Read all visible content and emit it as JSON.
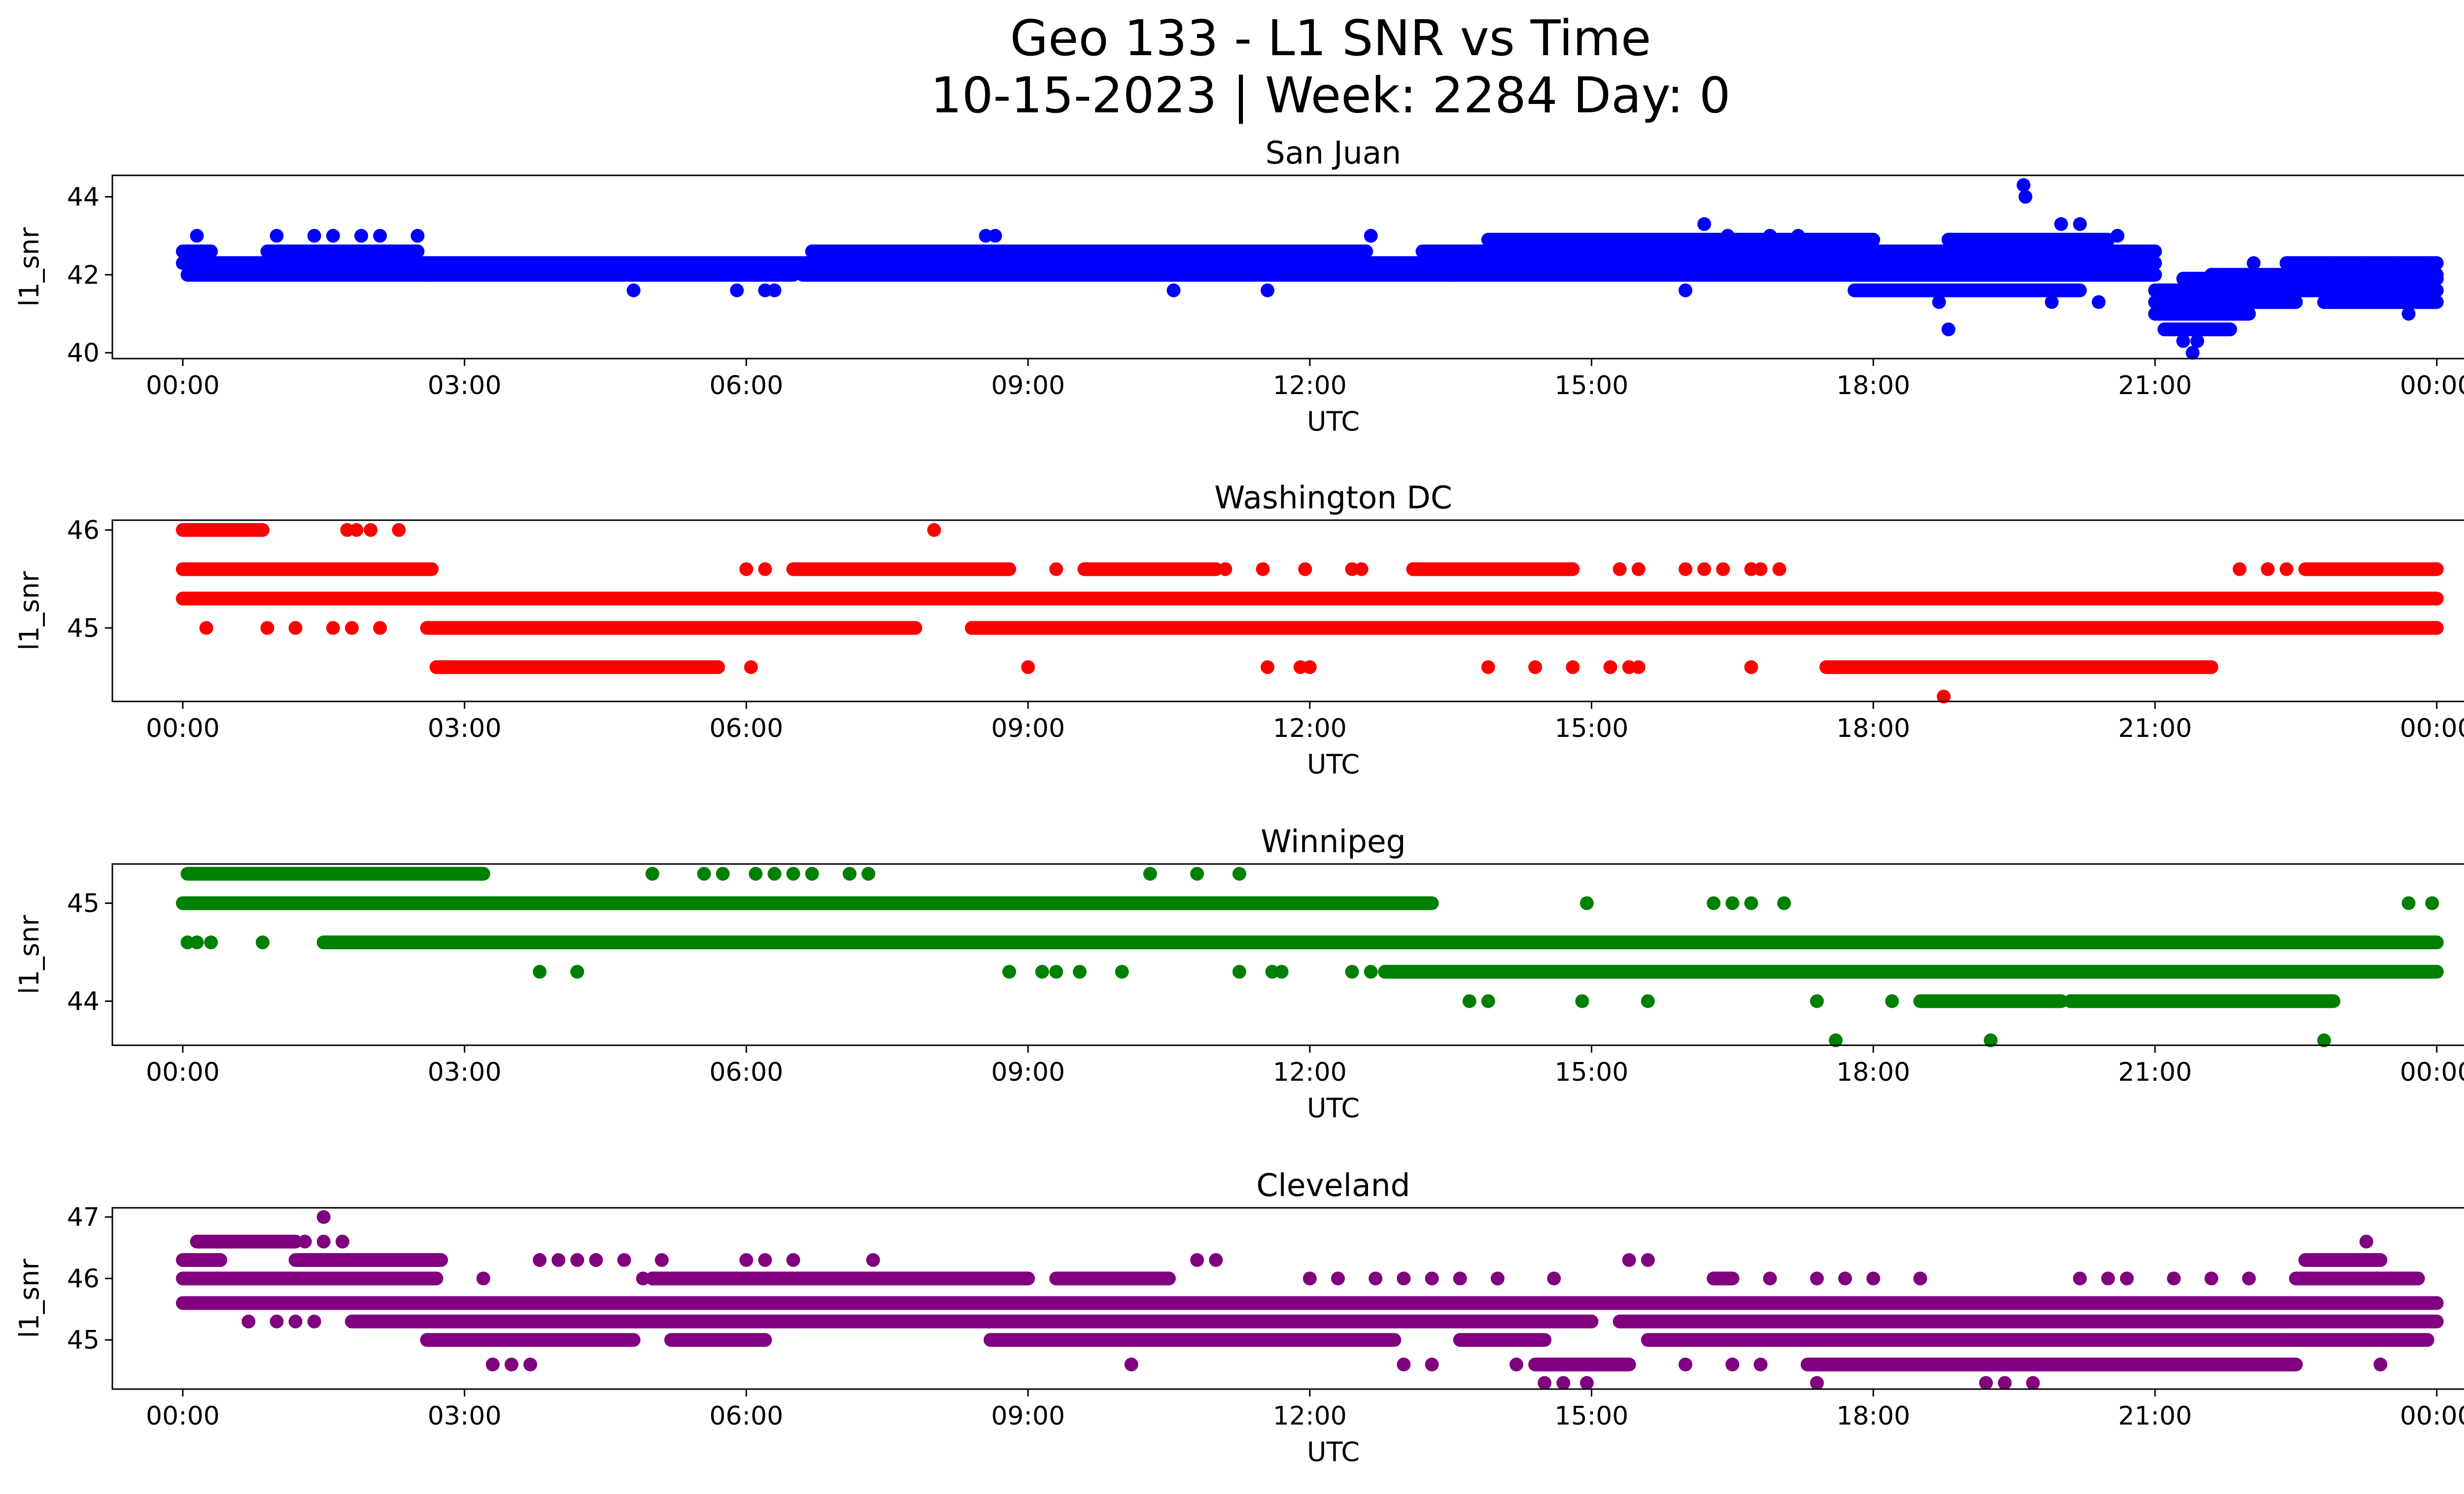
{
  "figure": {
    "title_line1": "Geo 133 - L1 SNR vs Time",
    "title_line2": "10-15-2023 | Week: 2284 Day: 0"
  },
  "chart_data": [
    {
      "type": "scatter",
      "title": "San Juan",
      "xlabel": "UTC",
      "ylabel": "l1_snr",
      "color": "#0000ff",
      "xlim_hours": [
        -0.75,
        25.25
      ],
      "ylim": [
        39.85,
        44.55
      ],
      "xticks": [
        "00:00",
        "03:00",
        "06:00",
        "09:00",
        "12:00",
        "15:00",
        "18:00",
        "21:00",
        "00:00"
      ],
      "yticks": [
        40,
        42,
        44
      ],
      "bands": [
        {
          "y": 42.6,
          "x": [
            [
              0,
              0.3
            ],
            [
              0.9,
              2.5
            ],
            [
              6.7,
              12.6
            ],
            [
              13.2,
              21
            ]
          ]
        },
        {
          "y": 42.3,
          "x": [
            [
              0,
              6.7
            ],
            [
              6.7,
              21
            ],
            [
              22.4,
              24
            ]
          ]
        },
        {
          "y": 42.0,
          "x": [
            [
              0.05,
              2.6
            ],
            [
              2.6,
              6.5
            ],
            [
              6.6,
              13.5
            ],
            [
              13.5,
              21
            ],
            [
              21.6,
              24
            ]
          ]
        },
        {
          "y": 41.9,
          "x": [
            [
              21.3,
              24
            ]
          ]
        },
        {
          "y": 41.6,
          "x": [
            [
              17.8,
              20.2
            ],
            [
              21,
              24
            ]
          ]
        },
        {
          "y": 41.3,
          "x": [
            [
              21,
              22.5
            ],
            [
              22.8,
              24
            ]
          ]
        },
        {
          "y": 41.0,
          "x": [
            [
              21,
              22
            ]
          ]
        },
        {
          "y": 40.6,
          "x": [
            [
              21.1,
              21.8
            ]
          ]
        },
        {
          "y": 42.9,
          "x": [
            [
              13.9,
              18.0
            ],
            [
              18.8,
              20.5
            ]
          ]
        }
      ],
      "points": [
        [
          0.15,
          43.0
        ],
        [
          1.0,
          43.0
        ],
        [
          1.4,
          43.0
        ],
        [
          1.6,
          43.0
        ],
        [
          1.9,
          43.0
        ],
        [
          2.1,
          43.0
        ],
        [
          2.5,
          43.0
        ],
        [
          4.8,
          41.6
        ],
        [
          5.9,
          41.6
        ],
        [
          6.2,
          41.6
        ],
        [
          6.3,
          41.6
        ],
        [
          8.55,
          43.0
        ],
        [
          8.65,
          43.0
        ],
        [
          10.55,
          41.6
        ],
        [
          11.55,
          41.6
        ],
        [
          12.65,
          43.0
        ],
        [
          16.2,
          43.3
        ],
        [
          16.45,
          43.0
        ],
        [
          16.0,
          41.6
        ],
        [
          16.9,
          43.0
        ],
        [
          17.2,
          43.0
        ],
        [
          18.7,
          41.3
        ],
        [
          18.8,
          40.6
        ],
        [
          19.6,
          44.3
        ],
        [
          19.62,
          44.0
        ],
        [
          20.0,
          43.3
        ],
        [
          20.2,
          43.3
        ],
        [
          19.9,
          41.3
        ],
        [
          20.4,
          41.3
        ],
        [
          20.6,
          43.0
        ],
        [
          21.4,
          40.0
        ],
        [
          21.75,
          42.0
        ],
        [
          22.05,
          42.3
        ],
        [
          22.4,
          42.3
        ],
        [
          22.9,
          42.3
        ],
        [
          23.2,
          42.3
        ],
        [
          23.6,
          42.3
        ],
        [
          23.7,
          41.0
        ],
        [
          23.9,
          42.3
        ],
        [
          21.3,
          40.3
        ],
        [
          21.45,
          40.3
        ]
      ]
    },
    {
      "type": "scatter",
      "title": "Washington DC",
      "xlabel": "UTC",
      "ylabel": "l1_snr",
      "color": "#ff0000",
      "xlim_hours": [
        -0.75,
        25.25
      ],
      "ylim": [
        44.25,
        46.1
      ],
      "xticks": [
        "00:00",
        "03:00",
        "06:00",
        "09:00",
        "12:00",
        "15:00",
        "18:00",
        "21:00",
        "00:00"
      ],
      "yticks": [
        45,
        46
      ],
      "bands": [
        {
          "y": 46.0,
          "x": [
            [
              0,
              0.85
            ]
          ]
        },
        {
          "y": 45.6,
          "x": [
            [
              0,
              2.65
            ],
            [
              6.5,
              8.8
            ],
            [
              9.6,
              11.0
            ],
            [
              13.1,
              14.8
            ],
            [
              22.6,
              24
            ]
          ]
        },
        {
          "y": 45.3,
          "x": [
            [
              0,
              24
            ]
          ]
        },
        {
          "y": 45.0,
          "x": [
            [
              2.6,
              7.8
            ],
            [
              8.4,
              15.8
            ],
            [
              15.8,
              24
            ]
          ]
        },
        {
          "y": 44.6,
          "x": [
            [
              2.7,
              5.7
            ],
            [
              17.5,
              21.6
            ]
          ]
        }
      ],
      "points": [
        [
          0.25,
          45.0
        ],
        [
          0.9,
          45.0
        ],
        [
          1.2,
          45.0
        ],
        [
          1.6,
          45.0
        ],
        [
          1.8,
          45.0
        ],
        [
          2.1,
          45.0
        ],
        [
          1.75,
          46.0
        ],
        [
          1.85,
          46.0
        ],
        [
          2.0,
          46.0
        ],
        [
          2.3,
          46.0
        ],
        [
          8.0,
          46.0
        ],
        [
          6.0,
          45.6
        ],
        [
          6.2,
          45.6
        ],
        [
          9.3,
          45.6
        ],
        [
          11.1,
          45.6
        ],
        [
          11.5,
          45.6
        ],
        [
          11.95,
          45.6
        ],
        [
          12.45,
          45.6
        ],
        [
          12.55,
          45.6
        ],
        [
          15.3,
          45.6
        ],
        [
          15.5,
          45.6
        ],
        [
          16.0,
          45.6
        ],
        [
          16.2,
          45.6
        ],
        [
          16.4,
          45.6
        ],
        [
          16.7,
          45.6
        ],
        [
          16.8,
          45.6
        ],
        [
          17.0,
          45.6
        ],
        [
          21.9,
          45.6
        ],
        [
          22.2,
          45.6
        ],
        [
          22.4,
          45.6
        ],
        [
          6.05,
          44.6
        ],
        [
          9.0,
          44.6
        ],
        [
          11.55,
          44.6
        ],
        [
          11.9,
          44.6
        ],
        [
          12.0,
          44.6
        ],
        [
          13.9,
          44.6
        ],
        [
          14.4,
          44.6
        ],
        [
          14.8,
          44.6
        ],
        [
          15.2,
          44.6
        ],
        [
          15.4,
          44.6
        ],
        [
          15.5,
          44.6
        ],
        [
          16.7,
          44.6
        ],
        [
          18.75,
          44.3
        ]
      ]
    },
    {
      "type": "scatter",
      "title": "Winnipeg",
      "xlabel": "UTC",
      "ylabel": "l1_snr",
      "color": "#008000",
      "xlim_hours": [
        -0.75,
        25.25
      ],
      "ylim": [
        43.55,
        45.4
      ],
      "xticks": [
        "00:00",
        "03:00",
        "06:00",
        "09:00",
        "12:00",
        "15:00",
        "18:00",
        "21:00",
        "00:00"
      ],
      "yticks": [
        44,
        45
      ],
      "bands": [
        {
          "y": 45.3,
          "x": [
            [
              0.05,
              3.2
            ]
          ]
        },
        {
          "y": 45.0,
          "x": [
            [
              0,
              13.3
            ]
          ]
        },
        {
          "y": 44.6,
          "x": [
            [
              1.5,
              13.3
            ],
            [
              13.3,
              24
            ]
          ]
        },
        {
          "y": 44.3,
          "x": [
            [
              12.8,
              24
            ]
          ]
        },
        {
          "y": 44.0,
          "x": [
            [
              18.5,
              20.0
            ],
            [
              20.1,
              22.9
            ]
          ]
        }
      ],
      "points": [
        [
          0.05,
          44.6
        ],
        [
          0.15,
          44.6
        ],
        [
          0.3,
          44.6
        ],
        [
          0.85,
          44.6
        ],
        [
          1.5,
          44.6
        ],
        [
          1.7,
          44.6
        ],
        [
          5.0,
          45.3
        ],
        [
          5.55,
          45.3
        ],
        [
          5.75,
          45.3
        ],
        [
          6.1,
          45.3
        ],
        [
          6.3,
          45.3
        ],
        [
          6.5,
          45.3
        ],
        [
          6.7,
          45.3
        ],
        [
          7.1,
          45.3
        ],
        [
          7.3,
          45.3
        ],
        [
          10.3,
          45.3
        ],
        [
          10.8,
          45.3
        ],
        [
          11.25,
          45.3
        ],
        [
          3.8,
          44.3
        ],
        [
          4.2,
          44.3
        ],
        [
          8.8,
          44.3
        ],
        [
          9.15,
          44.3
        ],
        [
          9.3,
          44.3
        ],
        [
          9.55,
          44.3
        ],
        [
          10.0,
          44.3
        ],
        [
          11.25,
          44.3
        ],
        [
          11.6,
          44.3
        ],
        [
          11.7,
          44.3
        ],
        [
          12.45,
          44.3
        ],
        [
          12.65,
          44.3
        ],
        [
          13.7,
          44.0
        ],
        [
          13.9,
          44.0
        ],
        [
          14.9,
          44.0
        ],
        [
          15.6,
          44.0
        ],
        [
          17.4,
          44.0
        ],
        [
          18.2,
          44.0
        ],
        [
          14.95,
          45.0
        ],
        [
          16.3,
          45.0
        ],
        [
          16.5,
          45.0
        ],
        [
          16.7,
          45.0
        ],
        [
          17.05,
          45.0
        ],
        [
          23.7,
          45.0
        ],
        [
          23.95,
          45.0
        ],
        [
          17.6,
          43.6
        ],
        [
          19.25,
          43.6
        ],
        [
          22.8,
          43.6
        ]
      ]
    },
    {
      "type": "scatter",
      "title": "Cleveland",
      "xlabel": "UTC",
      "ylabel": "l1_snr",
      "color": "#800080",
      "xlim_hours": [
        -0.75,
        25.25
      ],
      "ylim": [
        44.2,
        47.15
      ],
      "xticks": [
        "00:00",
        "03:00",
        "06:00",
        "09:00",
        "12:00",
        "15:00",
        "18:00",
        "21:00",
        "00:00"
      ],
      "yticks": [
        45,
        46,
        47
      ],
      "bands": [
        {
          "y": 46.3,
          "x": [
            [
              0,
              0.4
            ],
            [
              1.2,
              2.75
            ],
            [
              22.6,
              23.4
            ]
          ]
        },
        {
          "y": 46.0,
          "x": [
            [
              0,
              2.7
            ],
            [
              5.0,
              9.0
            ],
            [
              9.3,
              10.5
            ],
            [
              16.3,
              16.5
            ],
            [
              22.5,
              23.8
            ]
          ]
        },
        {
          "y": 45.6,
          "x": [
            [
              0,
              24
            ]
          ]
        },
        {
          "y": 45.3,
          "x": [
            [
              1.8,
              15.0
            ],
            [
              15.3,
              24
            ]
          ]
        },
        {
          "y": 45.0,
          "x": [
            [
              2.6,
              4.8
            ],
            [
              5.2,
              6.2
            ],
            [
              8.6,
              12.9
            ],
            [
              13.6,
              14.5
            ],
            [
              15.6,
              23.9
            ]
          ]
        },
        {
          "y": 44.6,
          "x": [
            [
              14.4,
              15.4
            ],
            [
              17.3,
              22.5
            ]
          ]
        },
        {
          "y": 46.6,
          "x": [
            [
              0.15,
              1.2
            ]
          ]
        }
      ],
      "points": [
        [
          0.7,
          45.3
        ],
        [
          1.0,
          45.3
        ],
        [
          1.2,
          45.3
        ],
        [
          1.4,
          45.3
        ],
        [
          1.3,
          46.6
        ],
        [
          1.5,
          46.6
        ],
        [
          1.7,
          46.6
        ],
        [
          1.5,
          47.0
        ],
        [
          3.2,
          46.0
        ],
        [
          3.8,
          46.3
        ],
        [
          4.0,
          46.3
        ],
        [
          4.2,
          46.3
        ],
        [
          4.4,
          46.3
        ],
        [
          4.7,
          46.3
        ],
        [
          4.9,
          46.0
        ],
        [
          5.1,
          46.3
        ],
        [
          6.0,
          46.3
        ],
        [
          6.2,
          46.3
        ],
        [
          6.5,
          46.3
        ],
        [
          7.35,
          46.3
        ],
        [
          3.3,
          44.6
        ],
        [
          3.5,
          44.6
        ],
        [
          3.7,
          44.6
        ],
        [
          10.1,
          44.6
        ],
        [
          10.8,
          46.3
        ],
        [
          11.0,
          46.3
        ],
        [
          12.0,
          46.0
        ],
        [
          12.3,
          46.0
        ],
        [
          12.7,
          46.0
        ],
        [
          13.0,
          46.0
        ],
        [
          13.3,
          46.0
        ],
        [
          13.6,
          46.0
        ],
        [
          14.0,
          46.0
        ],
        [
          14.6,
          46.0
        ],
        [
          13.0,
          44.6
        ],
        [
          13.3,
          44.6
        ],
        [
          14.2,
          44.6
        ],
        [
          16.0,
          44.6
        ],
        [
          16.5,
          44.6
        ],
        [
          16.8,
          44.6
        ],
        [
          14.5,
          44.3
        ],
        [
          14.7,
          44.3
        ],
        [
          14.95,
          44.3
        ],
        [
          17.4,
          44.3
        ],
        [
          19.2,
          44.3
        ],
        [
          19.4,
          44.3
        ],
        [
          19.7,
          44.3
        ],
        [
          15.4,
          46.3
        ],
        [
          15.6,
          46.3
        ],
        [
          16.9,
          46.0
        ],
        [
          17.4,
          46.0
        ],
        [
          17.7,
          46.0
        ],
        [
          18.0,
          46.0
        ],
        [
          18.5,
          46.0
        ],
        [
          20.2,
          46.0
        ],
        [
          20.5,
          46.0
        ],
        [
          20.7,
          46.0
        ],
        [
          21.2,
          46.0
        ],
        [
          21.6,
          46.0
        ],
        [
          22.0,
          46.0
        ],
        [
          23.25,
          46.6
        ],
        [
          23.4,
          44.6
        ],
        [
          23.6,
          45.0
        ],
        [
          22.4,
          45.3
        ]
      ]
    }
  ]
}
